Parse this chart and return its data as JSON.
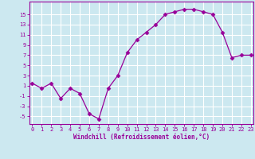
{
  "x": [
    0,
    1,
    2,
    3,
    4,
    5,
    6,
    7,
    8,
    9,
    10,
    11,
    12,
    13,
    14,
    15,
    16,
    17,
    18,
    19,
    20,
    21,
    22,
    23
  ],
  "y": [
    1.5,
    0.5,
    1.5,
    -1.5,
    0.5,
    -0.5,
    -4.5,
    -5.5,
    0.5,
    3.0,
    7.5,
    10.0,
    11.5,
    13.0,
    15.0,
    15.5,
    16.0,
    16.0,
    15.5,
    15.0,
    11.5,
    6.5,
    7.0,
    7.0
  ],
  "line_color": "#990099",
  "marker": "D",
  "marker_size": 2.5,
  "bg_color": "#cce8f0",
  "grid_color": "#ffffff",
  "xlabel": "Windchill (Refroidissement éolien,°C)",
  "yticks": [
    -5,
    -3,
    -1,
    1,
    3,
    5,
    7,
    9,
    11,
    13,
    15
  ],
  "xticks": [
    0,
    1,
    2,
    3,
    4,
    5,
    6,
    7,
    8,
    9,
    10,
    11,
    12,
    13,
    14,
    15,
    16,
    17,
    18,
    19,
    20,
    21,
    22,
    23
  ],
  "ylim": [
    -6.5,
    17.5
  ],
  "xlim": [
    -0.3,
    23.3
  ],
  "tick_color": "#990099",
  "label_color": "#990099",
  "spine_color": "#990099"
}
